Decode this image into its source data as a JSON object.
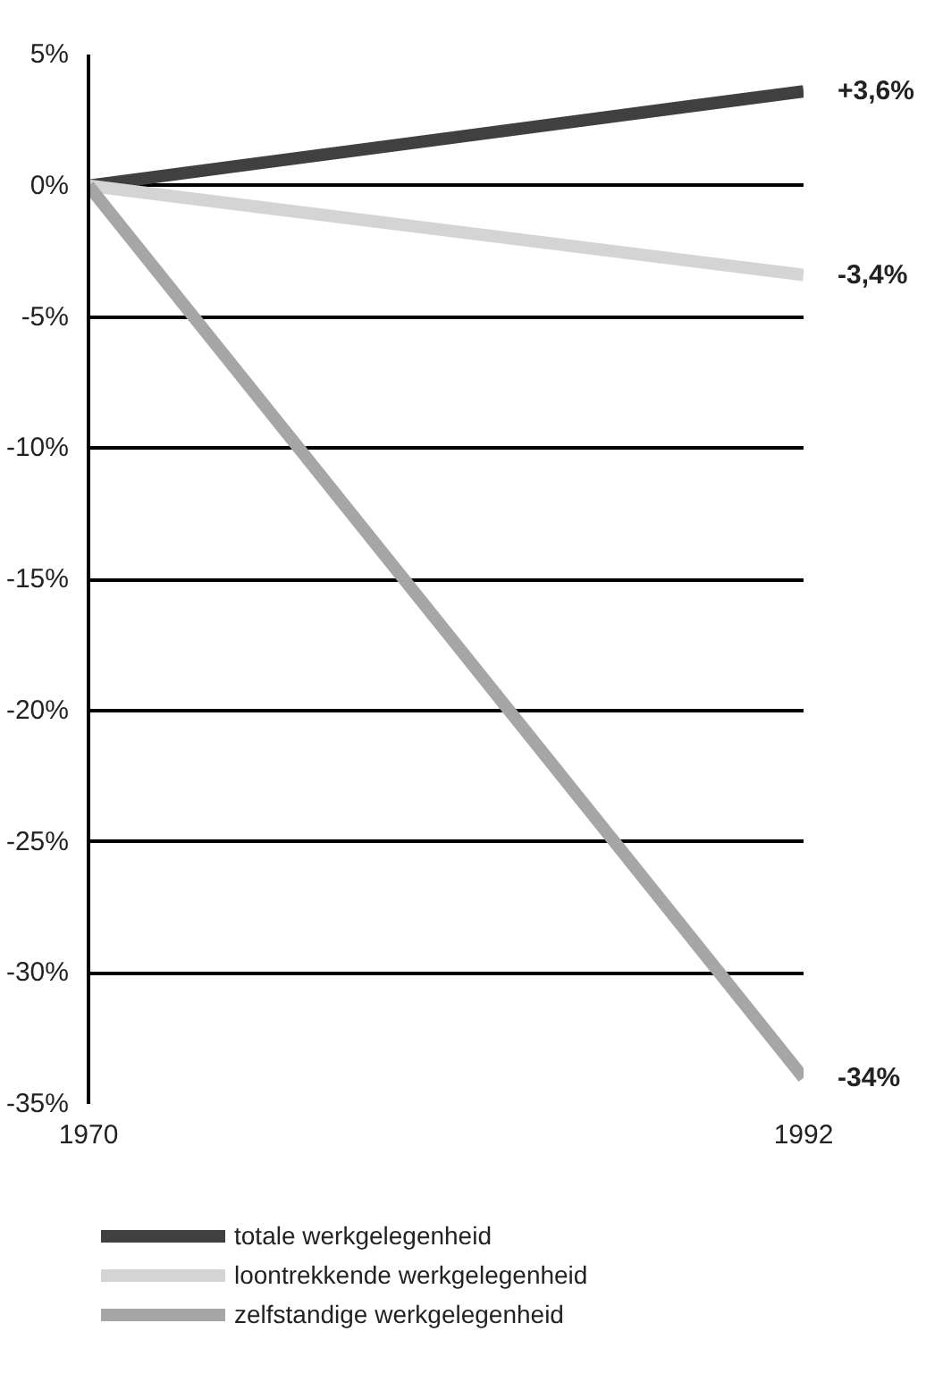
{
  "chart_data": {
    "type": "line",
    "x": [
      1970,
      1992
    ],
    "series": [
      {
        "name": "totale werkgelegenheid",
        "color": "#404040",
        "values": [
          0,
          3.6
        ],
        "value_labels": [
          null,
          "+3,6%"
        ]
      },
      {
        "name": "loontrekkende werkgelegenheid",
        "color": "#d4d4d4",
        "values": [
          0,
          -3.4
        ],
        "value_labels": [
          null,
          "-3,4%"
        ]
      },
      {
        "name": "zelfstandige werkgelegenheid",
        "color": "#a6a6a6",
        "values": [
          0,
          -34
        ],
        "value_labels": [
          null,
          "-34%"
        ]
      }
    ],
    "xlim": [
      1970,
      1992
    ],
    "xticks": [
      1970,
      1992
    ],
    "ylim": [
      -35,
      5
    ],
    "yticks": [
      {
        "value": 5,
        "label": "5%"
      },
      {
        "value": 0,
        "label": "0%"
      },
      {
        "value": -5,
        "label": "-5%"
      },
      {
        "value": -10,
        "label": "-10%"
      },
      {
        "value": -15,
        "label": "-15%"
      },
      {
        "value": -20,
        "label": "-20%"
      },
      {
        "value": -25,
        "label": "-25%"
      },
      {
        "value": -30,
        "label": "-30%"
      },
      {
        "value": -35,
        "label": "-35%"
      }
    ],
    "grid": "y",
    "legend": "bottom",
    "marker": "none",
    "line_style": "solid"
  }
}
